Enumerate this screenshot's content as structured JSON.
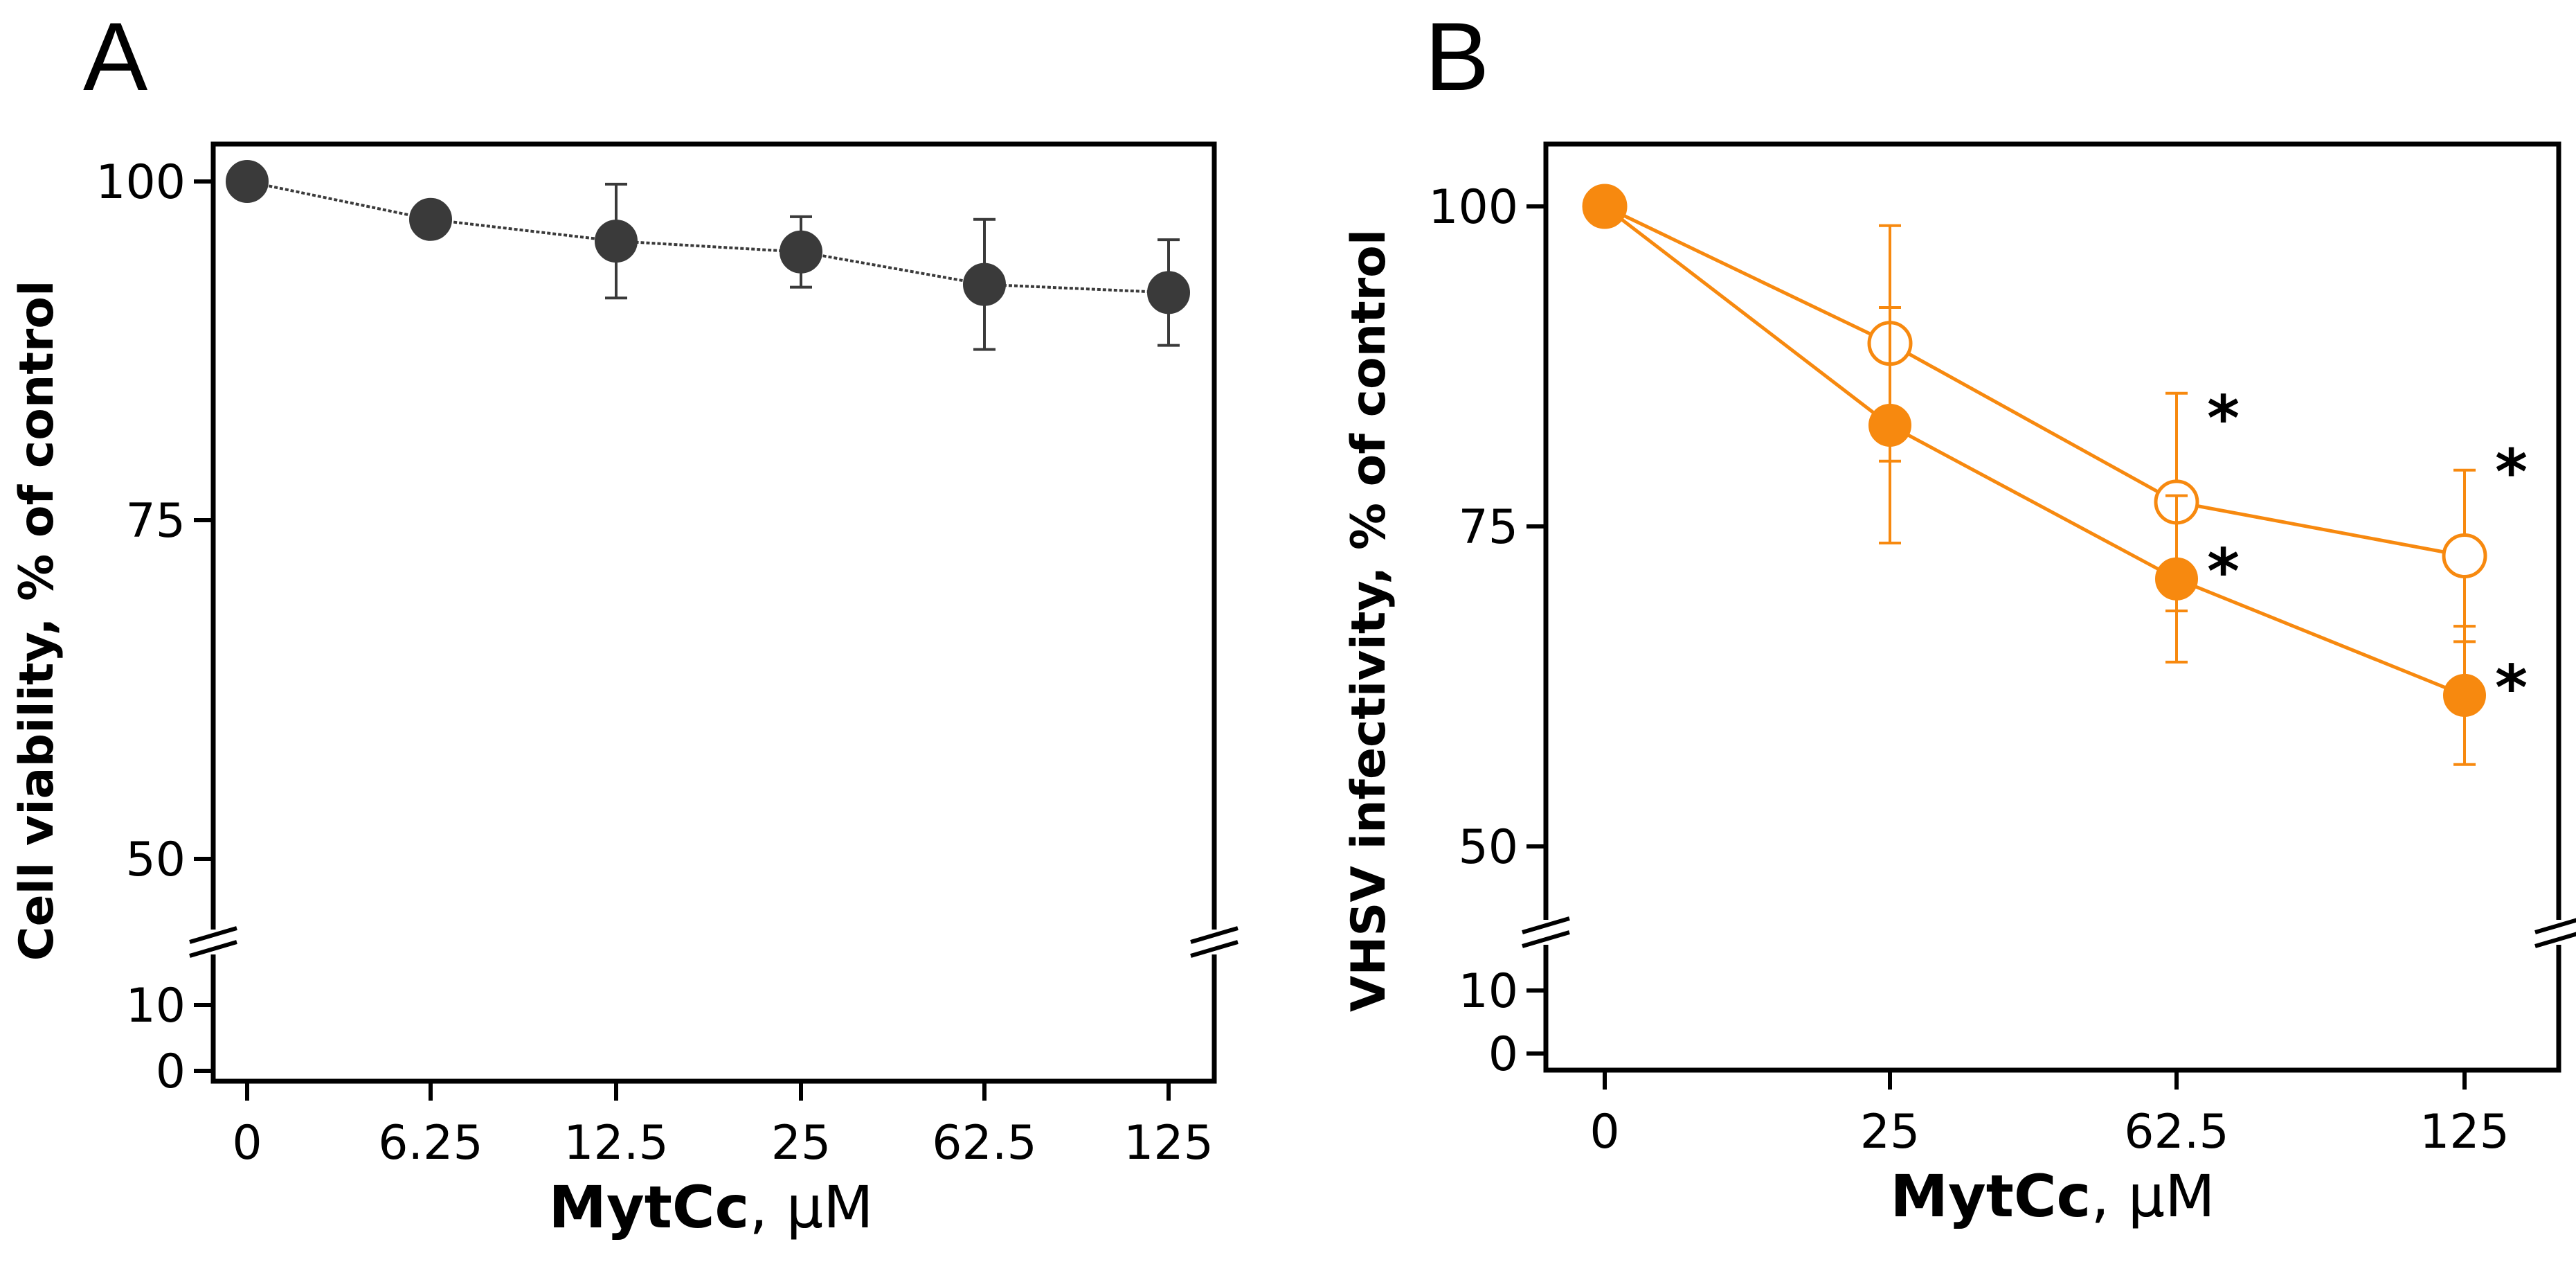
{
  "chart_data": [
    {
      "panel": "A",
      "type": "line",
      "categories": [
        "0",
        "6.25",
        "12.5",
        "25",
        "62.5",
        "125"
      ],
      "xlabel_bold": "MytCc",
      "xlabel_unit": ", µM",
      "ylabel": "Cell viability, % of control",
      "ylim": [
        0,
        100
      ],
      "axis_break": [
        10,
        50
      ],
      "yticks": [
        {
          "value": 0,
          "label": "0"
        },
        {
          "value": 10,
          "label": "10"
        },
        {
          "value": 50,
          "label": "50"
        },
        {
          "value": 75,
          "label": "75"
        },
        {
          "value": 100,
          "label": "100"
        }
      ],
      "series": [
        {
          "name": "Cell viability",
          "color": "#3a3a3a",
          "marker": "filled",
          "line_style": "dotted",
          "values": [
            100,
            97.2,
            95.6,
            94.8,
            92.4,
            91.8
          ],
          "errors": [
            0,
            0,
            4.2,
            2.6,
            4.8,
            3.9
          ]
        }
      ]
    },
    {
      "panel": "B",
      "type": "line",
      "categories": [
        "0",
        "25",
        "62.5",
        "125"
      ],
      "xlabel_bold": "MytCc",
      "xlabel_unit": ", µM",
      "ylabel": "VHSV infectivity, % of control",
      "ylim": [
        0,
        100
      ],
      "axis_break": [
        10,
        50
      ],
      "yticks": [
        {
          "value": 0,
          "label": "0"
        },
        {
          "value": 10,
          "label": "10"
        },
        {
          "value": 50,
          "label": "50"
        },
        {
          "value": 75,
          "label": "75"
        },
        {
          "value": 100,
          "label": "100"
        }
      ],
      "series": [
        {
          "name": "open",
          "color": "#f7890f",
          "marker": "open",
          "values": [
            100,
            89.3,
            76.9,
            72.7
          ],
          "errors": [
            0,
            9.2,
            8.5,
            6.7
          ],
          "significant": [
            false,
            false,
            true,
            true
          ]
        },
        {
          "name": "filled",
          "color": "#f7890f",
          "marker": "filled",
          "values": [
            100,
            82.9,
            70.9,
            61.8
          ],
          "errors": [
            0,
            9.2,
            6.5,
            5.4
          ],
          "significant": [
            false,
            false,
            true,
            true
          ]
        }
      ]
    }
  ]
}
